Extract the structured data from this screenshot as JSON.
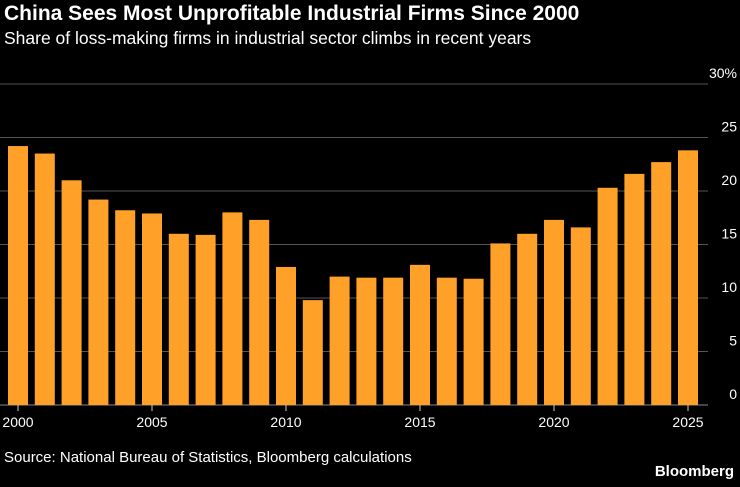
{
  "title": "China Sees Most Unprofitable Industrial Firms Since 2000",
  "subtitle": "Share of loss-making firms in industrial sector climbs in recent years",
  "source": "Source: National Bureau of Statistics, Bloomberg calculations",
  "brand": "Bloomberg",
  "colors": {
    "bar": "#FFA028",
    "grid": "#555555",
    "background": "#000000",
    "text": "#FFFFFF"
  },
  "chart_data": {
    "type": "bar",
    "title": "China Sees Most Unprofitable Industrial Firms Since 2000",
    "subtitle": "Share of loss-making firms in industrial sector climbs in recent years",
    "xlabel": "",
    "ylabel": "",
    "ylim": [
      0,
      30
    ],
    "y_ticks": [
      0,
      5,
      10,
      15,
      20,
      25,
      30
    ],
    "y_tick_labels": [
      "0",
      "5",
      "10",
      "15",
      "20",
      "25",
      "30%"
    ],
    "x_tick_labels": [
      "2000",
      "2005",
      "2010",
      "2015",
      "2020",
      "2025"
    ],
    "grid": true,
    "legend": "none",
    "categories": [
      2000,
      2001,
      2002,
      2003,
      2004,
      2005,
      2006,
      2007,
      2008,
      2009,
      2010,
      2011,
      2012,
      2013,
      2014,
      2015,
      2016,
      2017,
      2018,
      2019,
      2020,
      2021,
      2022,
      2023,
      2024,
      2025
    ],
    "values": [
      24.2,
      23.5,
      21.0,
      19.2,
      18.2,
      17.9,
      16.0,
      15.9,
      18.0,
      17.3,
      12.9,
      9.8,
      12.0,
      11.9,
      11.9,
      13.1,
      11.9,
      11.8,
      15.1,
      16.0,
      17.3,
      16.6,
      20.3,
      21.6,
      22.7,
      23.8
    ]
  }
}
